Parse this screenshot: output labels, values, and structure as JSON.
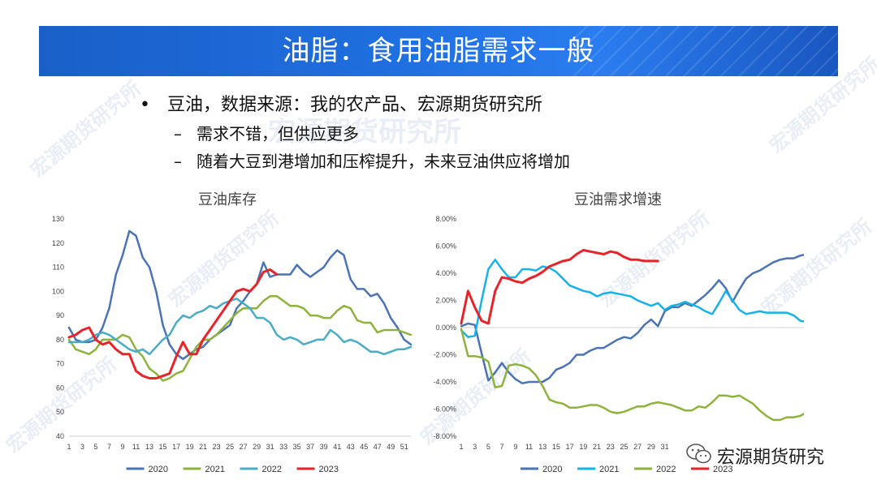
{
  "header": {
    "title": "油脂：食用油脂需求一般"
  },
  "bullets": {
    "main": "豆油，数据来源：我的农产品、宏源期货研究所",
    "sub1": "需求不错，但供应更多",
    "sub2": "随着大豆到港增加和压榨提升，未来豆油供应将增加"
  },
  "watermark": "宏源期货研究所",
  "logo": {
    "text": "宏源期货研究",
    "icon": "wechat-icon"
  },
  "chart_data": [
    {
      "type": "line",
      "title": "豆油库存",
      "ylim": [
        40,
        130
      ],
      "yticks": [
        40,
        50,
        60,
        70,
        80,
        90,
        100,
        110,
        120,
        130
      ],
      "xticks": [
        "1",
        "3",
        "5",
        "7",
        "9",
        "11",
        "13",
        "15",
        "17",
        "19",
        "21",
        "23",
        "25",
        "27",
        "29",
        "31",
        "33",
        "35",
        "37",
        "39",
        "41",
        "43",
        "45",
        "47",
        "49",
        "51"
      ],
      "xrange": [
        1,
        52
      ],
      "legend_position": "bottom",
      "series": [
        {
          "name": "2020",
          "color": "#4a74b4",
          "x": [
            1,
            2,
            3,
            4,
            5,
            6,
            7,
            8,
            9,
            10,
            11,
            12,
            13,
            14,
            15,
            16,
            17,
            18,
            19,
            20,
            21,
            22,
            23,
            24,
            25,
            26,
            27,
            28,
            29,
            30,
            31,
            32,
            33,
            34,
            35,
            36,
            37,
            38,
            39,
            40,
            41,
            42,
            43,
            44,
            45,
            46,
            47,
            48,
            49,
            50,
            51,
            52
          ],
          "values": [
            85,
            80,
            79,
            79,
            80,
            85,
            93,
            107,
            115,
            125,
            123,
            114,
            110,
            100,
            86,
            78,
            74,
            72,
            74,
            76,
            77,
            80,
            82,
            84,
            86,
            93,
            96,
            100,
            103,
            112,
            106,
            107,
            107,
            107,
            111,
            108,
            106,
            108,
            110,
            114,
            117,
            115,
            105,
            101,
            101,
            98,
            99,
            95,
            89,
            85,
            80,
            78
          ]
        },
        {
          "name": "2021",
          "color": "#8db33c",
          "x": [
            1,
            2,
            3,
            4,
            5,
            6,
            7,
            8,
            9,
            10,
            11,
            12,
            13,
            14,
            15,
            16,
            17,
            18,
            19,
            20,
            21,
            22,
            23,
            24,
            25,
            26,
            27,
            28,
            29,
            30,
            31,
            32,
            33,
            34,
            35,
            36,
            37,
            38,
            39,
            40,
            41,
            42,
            43,
            44,
            45,
            46,
            47,
            48,
            49,
            50,
            51,
            52
          ],
          "values": [
            80,
            76,
            75,
            74,
            76,
            80,
            80,
            80,
            82,
            81,
            76,
            73,
            68,
            66,
            63,
            64,
            66,
            67,
            72,
            77,
            80,
            80,
            82,
            85,
            88,
            91,
            93,
            93,
            93,
            96,
            98,
            98,
            96,
            94,
            94,
            93,
            90,
            90,
            89,
            89,
            92,
            94,
            93,
            88,
            87,
            87,
            83,
            84,
            84,
            84,
            83,
            82
          ]
        },
        {
          "name": "2022",
          "color": "#4bacc6",
          "x": [
            1,
            2,
            3,
            4,
            5,
            6,
            7,
            8,
            9,
            10,
            11,
            12,
            13,
            14,
            15,
            16,
            17,
            18,
            19,
            20,
            21,
            22,
            23,
            24,
            25,
            26,
            27,
            28,
            29,
            30,
            31,
            32,
            33,
            34,
            35,
            36,
            37,
            38,
            39,
            40,
            41,
            42,
            43,
            44,
            45,
            46,
            47,
            48,
            49,
            50,
            51,
            52
          ],
          "values": [
            79,
            79,
            79,
            80,
            82,
            83,
            82,
            80,
            78,
            76,
            75,
            76,
            74,
            77,
            80,
            82,
            87,
            90,
            89,
            91,
            92,
            94,
            93,
            95,
            96,
            97,
            95,
            93,
            89,
            89,
            87,
            82,
            80,
            81,
            80,
            78,
            79,
            80,
            80,
            84,
            82,
            79,
            80,
            79,
            77,
            75,
            75,
            74,
            75,
            76,
            76,
            77
          ]
        },
        {
          "name": "2023",
          "color": "#e8232a",
          "x": [
            1,
            2,
            3,
            4,
            5,
            6,
            7,
            8,
            9,
            10,
            11,
            12,
            13,
            14,
            15,
            16,
            17,
            18,
            19,
            20,
            21,
            22,
            23,
            24,
            25,
            26,
            27,
            28,
            29,
            30,
            31,
            32
          ],
          "values": [
            81,
            82,
            84,
            85,
            80,
            78,
            79,
            76,
            74,
            74,
            67,
            65,
            64,
            64,
            65,
            66,
            73,
            79,
            74,
            74,
            80,
            84,
            88,
            92,
            96,
            100,
            101,
            100,
            103,
            108,
            109,
            107
          ]
        }
      ]
    },
    {
      "type": "line",
      "title": "豆油需求增速",
      "ylim": [
        -8,
        8
      ],
      "yticks": [
        "-8.00%",
        "-6.00%",
        "-4.00%",
        "-2.00%",
        "0.00%",
        "2.00%",
        "4.00%",
        "6.00%",
        "8.00%"
      ],
      "ytick_values": [
        -8,
        -6,
        -4,
        -2,
        0,
        2,
        4,
        6,
        8
      ],
      "xticks": [
        "1",
        "3",
        "5",
        "7",
        "9",
        "11",
        "13",
        "15",
        "17",
        "19",
        "21",
        "23",
        "25",
        "27",
        "29",
        "31"
      ],
      "xrange": [
        1,
        52
      ],
      "legend_position": "bottom",
      "series": [
        {
          "name": "2020",
          "color": "#4a74b4",
          "x": [
            1,
            2,
            3,
            4,
            5,
            6,
            7,
            8,
            9,
            10,
            11,
            12,
            13,
            14,
            15,
            16,
            17,
            18,
            19,
            20,
            21,
            22,
            23,
            24,
            25,
            26,
            27,
            28,
            29,
            30,
            31,
            32,
            33,
            34,
            35,
            36,
            37,
            38,
            39,
            40,
            41,
            42,
            43,
            44,
            45,
            46,
            47,
            48,
            49,
            50,
            51,
            52
          ],
          "values": [
            0.1,
            0.3,
            0.2,
            -1.9,
            -3.9,
            -3.3,
            -2.6,
            -3.3,
            -3.8,
            -4.1,
            -4.0,
            -4.0,
            -4.0,
            -3.7,
            -3.1,
            -2.9,
            -2.6,
            -2.0,
            -2.0,
            -1.7,
            -1.5,
            -1.5,
            -1.2,
            -0.9,
            -0.7,
            -0.8,
            -0.4,
            0.2,
            0.6,
            0.1,
            1.2,
            1.5,
            1.5,
            1.8,
            1.6,
            2.0,
            2.4,
            2.9,
            3.5,
            2.9,
            1.9,
            2.8,
            3.6,
            4.0,
            4.2,
            4.5,
            4.8,
            5.0,
            5.1,
            5.1,
            5.3,
            5.4
          ]
        },
        {
          "name": "2021",
          "color": "#16b2e8",
          "x": [
            1,
            2,
            3,
            4,
            5,
            6,
            7,
            8,
            9,
            10,
            11,
            12,
            13,
            14,
            15,
            16,
            17,
            18,
            19,
            20,
            21,
            22,
            23,
            24,
            25,
            26,
            27,
            28,
            29,
            30,
            31,
            32,
            33,
            34,
            35,
            36,
            37,
            38,
            39,
            40,
            41,
            42,
            43,
            44,
            45,
            46,
            47,
            48,
            49,
            50,
            51,
            52
          ],
          "values": [
            -0.2,
            -0.7,
            -0.6,
            2.0,
            4.3,
            5.0,
            4.3,
            3.7,
            3.7,
            4.3,
            4.3,
            4.2,
            4.5,
            4.4,
            4.1,
            3.6,
            3.1,
            2.9,
            2.7,
            2.6,
            2.3,
            2.5,
            2.6,
            2.5,
            2.4,
            2.3,
            2.0,
            1.8,
            1.6,
            1.8,
            1.3,
            1.6,
            1.7,
            1.9,
            1.7,
            1.5,
            1.2,
            1.0,
            1.8,
            2.7,
            2.0,
            1.3,
            1.0,
            1.1,
            1.2,
            1.1,
            1.1,
            1.1,
            1.1,
            0.9,
            0.5,
            0.4
          ]
        },
        {
          "name": "2022",
          "color": "#8db33c",
          "x": [
            1,
            2,
            3,
            4,
            5,
            6,
            7,
            8,
            9,
            10,
            11,
            12,
            13,
            14,
            15,
            16,
            17,
            18,
            19,
            20,
            21,
            22,
            23,
            24,
            25,
            26,
            27,
            28,
            29,
            30,
            31,
            32,
            33,
            34,
            35,
            36,
            37,
            38,
            39,
            40,
            41,
            42,
            43,
            44,
            45,
            46,
            47,
            48,
            49,
            50,
            51,
            52
          ],
          "values": [
            -0.1,
            -2.1,
            -2.1,
            -2.2,
            -2.5,
            -4.4,
            -4.3,
            -2.8,
            -2.7,
            -2.8,
            -3.0,
            -3.5,
            -4.3,
            -5.3,
            -5.5,
            -5.6,
            -5.9,
            -5.9,
            -5.8,
            -5.7,
            -5.7,
            -5.9,
            -6.2,
            -6.3,
            -6.2,
            -6.0,
            -5.8,
            -5.8,
            -5.6,
            -5.5,
            -5.6,
            -5.7,
            -5.9,
            -6.1,
            -6.1,
            -5.8,
            -5.9,
            -5.5,
            -5.0,
            -5.0,
            -5.1,
            -5.0,
            -5.3,
            -5.6,
            -6.1,
            -6.5,
            -6.8,
            -6.8,
            -6.6,
            -6.6,
            -6.5,
            -6.2
          ]
        },
        {
          "name": "2023",
          "color": "#e8232a",
          "x": [
            1,
            2,
            3,
            4,
            5,
            6,
            7,
            8,
            9,
            10,
            11,
            12,
            13,
            14,
            15,
            16,
            17,
            18,
            19,
            20,
            21,
            22,
            23,
            24,
            25,
            26,
            27,
            28,
            29,
            30
          ],
          "values": [
            0.3,
            2.7,
            1.5,
            0.5,
            0.3,
            2.7,
            3.7,
            3.6,
            3.4,
            3.3,
            3.6,
            3.8,
            4.1,
            4.5,
            4.7,
            4.9,
            5.0,
            5.4,
            5.7,
            5.6,
            5.5,
            5.4,
            5.6,
            5.5,
            5.2,
            5.0,
            5.0,
            4.9,
            4.9,
            4.9
          ]
        }
      ]
    }
  ]
}
